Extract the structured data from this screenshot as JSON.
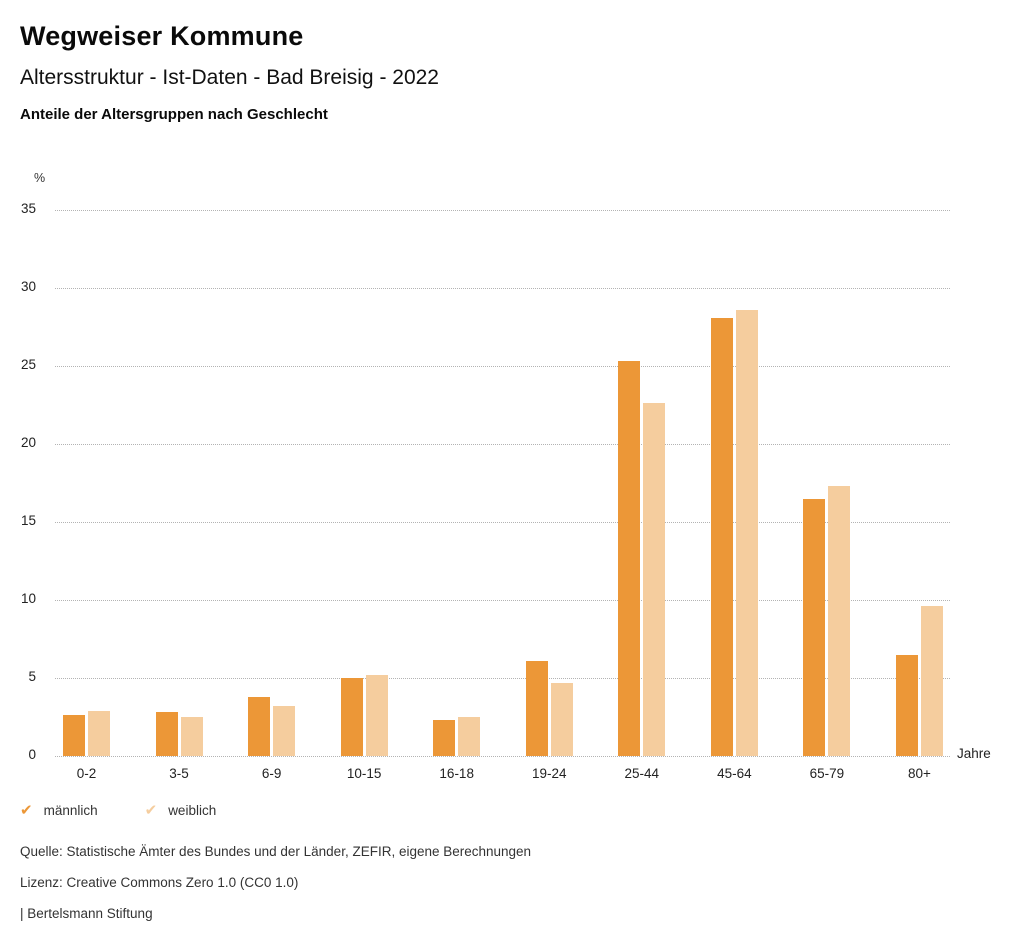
{
  "header": {
    "title": "Wegweiser Kommune",
    "subtitle": "Altersstruktur - Ist-Daten - Bad Breisig - 2022",
    "heading": "Anteile der Altersgruppen nach Geschlecht"
  },
  "chart_data": {
    "type": "bar",
    "title": "Anteile der Altersgruppen nach Geschlecht",
    "categories": [
      "0-2",
      "3-5",
      "6-9",
      "10-15",
      "16-18",
      "19-24",
      "25-44",
      "45-64",
      "65-79",
      "80+"
    ],
    "series": [
      {
        "name": "männlich",
        "color": "#EC9737",
        "values": [
          2.6,
          2.8,
          3.8,
          5.0,
          2.3,
          6.1,
          25.3,
          28.1,
          16.5,
          6.5
        ]
      },
      {
        "name": "weiblich",
        "color": "#F5CD9E",
        "values": [
          2.9,
          2.5,
          3.2,
          5.2,
          2.5,
          4.7,
          22.6,
          28.6,
          17.3,
          9.6
        ]
      }
    ],
    "xlabel": "Jahre",
    "ylabel": "%",
    "ylim": [
      0,
      35
    ],
    "yticks": [
      0,
      5,
      10,
      15,
      20,
      25,
      30,
      35
    ],
    "grid": "horizontal-dotted",
    "legend_position": "bottom-left"
  },
  "legend": {
    "check_icon": "✔"
  },
  "footer": {
    "source": "Quelle: Statistische Ämter des Bundes und der Länder, ZEFIR, eigene Berechnungen",
    "license": "Lizenz: Creative Commons Zero 1.0 (CC0 1.0)",
    "attribution": "| Bertelsmann Stiftung"
  }
}
